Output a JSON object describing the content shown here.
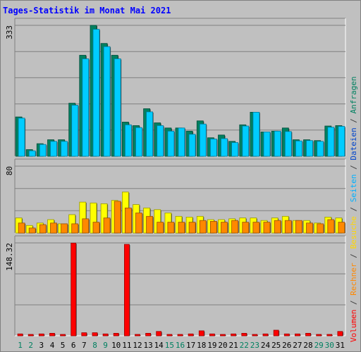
{
  "title": "Tages-Statistik im Monat Mai 2021",
  "right_legend": [
    {
      "text": "Volumen",
      "color": "#ff0000"
    },
    {
      "text": " / ",
      "color": "#404040"
    },
    {
      "text": "Rechner",
      "color": "#ff8800"
    },
    {
      "text": " / ",
      "color": "#404040"
    },
    {
      "text": "Besuche",
      "color": "#ffd700"
    },
    {
      "text": " / ",
      "color": "#404040"
    },
    {
      "text": "Seiten",
      "color": "#00b0ff"
    },
    {
      "text": " / ",
      "color": "#404040"
    },
    {
      "text": "Dateien",
      "color": "#0044cc"
    },
    {
      "text": " / ",
      "color": "#404040"
    },
    {
      "text": "Anfragen",
      "color": "#008060"
    }
  ],
  "days": [
    {
      "label": "1",
      "weekend": true
    },
    {
      "label": "2",
      "weekend": true
    },
    {
      "label": "3",
      "weekend": false
    },
    {
      "label": "4",
      "weekend": false
    },
    {
      "label": "5",
      "weekend": false
    },
    {
      "label": "6",
      "weekend": false
    },
    {
      "label": "7",
      "weekend": false
    },
    {
      "label": "8",
      "weekend": true
    },
    {
      "label": "9",
      "weekend": true
    },
    {
      "label": "10",
      "weekend": false
    },
    {
      "label": "11",
      "weekend": false
    },
    {
      "label": "12",
      "weekend": false
    },
    {
      "label": "13",
      "weekend": false
    },
    {
      "label": "14",
      "weekend": false
    },
    {
      "label": "15",
      "weekend": true
    },
    {
      "label": "16",
      "weekend": true
    },
    {
      "label": "17",
      "weekend": false
    },
    {
      "label": "18",
      "weekend": false
    },
    {
      "label": "19",
      "weekend": false
    },
    {
      "label": "20",
      "weekend": false
    },
    {
      "label": "21",
      "weekend": false
    },
    {
      "label": "22",
      "weekend": true
    },
    {
      "label": "23",
      "weekend": true
    },
    {
      "label": "24",
      "weekend": false
    },
    {
      "label": "25",
      "weekend": false
    },
    {
      "label": "26",
      "weekend": false
    },
    {
      "label": "27",
      "weekend": false
    },
    {
      "label": "28",
      "weekend": false
    },
    {
      "label": "29",
      "weekend": true
    },
    {
      "label": "30",
      "weekend": true
    },
    {
      "label": "31",
      "weekend": false
    }
  ],
  "chart_data": [
    {
      "type": "bar",
      "panel": "requests",
      "y_tick_label": "333",
      "ylim": [
        0,
        333
      ],
      "series": [
        {
          "name": "Anfragen",
          "color": "#008060",
          "values": [
            100,
            17,
            32,
            42,
            42,
            135,
            257,
            333,
            287,
            257,
            87,
            78,
            121,
            85,
            72,
            72,
            64,
            90,
            47,
            54,
            38,
            80,
            112,
            62,
            64,
            72,
            42,
            42,
            40,
            77,
            78
          ]
        },
        {
          "name": "Dateien",
          "color": "#00ccff",
          "values": [
            97,
            14,
            30,
            38,
            38,
            130,
            248,
            323,
            279,
            248,
            80,
            73,
            113,
            78,
            64,
            72,
            56,
            82,
            44,
            45,
            35,
            77,
            112,
            62,
            64,
            63,
            39,
            40,
            38,
            74,
            76
          ]
        }
      ]
    },
    {
      "type": "bar",
      "panel": "visits",
      "y_tick_label": "80",
      "ylim": [
        0,
        80
      ],
      "series": [
        {
          "name": "Besuche",
          "color": "#ffff00",
          "values": [
            18,
            9,
            12,
            16,
            11,
            22,
            37,
            36,
            35,
            39,
            49,
            34,
            30,
            28,
            24,
            20,
            19,
            20,
            16,
            16,
            17,
            18,
            18,
            15,
            18,
            20,
            15,
            15,
            12,
            19,
            18
          ]
        },
        {
          "name": "Rechner",
          "color": "#ff8800",
          "values": [
            12,
            6,
            10,
            12,
            11,
            11,
            17,
            13,
            18,
            38,
            30,
            24,
            20,
            13,
            13,
            13,
            13,
            15,
            14,
            13,
            15,
            13,
            13,
            13,
            15,
            15,
            15,
            12,
            11,
            16,
            13
          ]
        }
      ]
    },
    {
      "type": "bar",
      "panel": "volume",
      "y_tick_label": "148.32",
      "ylim": [
        0,
        148.32
      ],
      "series": [
        {
          "name": "Volumen",
          "color": "#ff0000",
          "values": [
            3,
            2,
            3,
            4,
            2,
            148,
            5,
            5,
            3,
            4,
            146,
            2,
            4,
            7,
            2,
            2,
            3,
            8,
            3,
            2,
            3,
            4,
            2,
            3,
            9,
            3,
            3,
            4,
            2,
            2,
            7
          ]
        }
      ]
    }
  ]
}
